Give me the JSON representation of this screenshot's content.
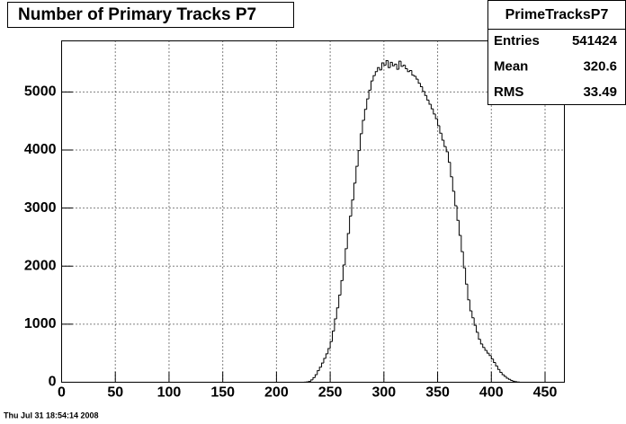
{
  "chart_data": {
    "type": "histogram",
    "title": "Number of Primary Tracks P7",
    "bins": [
      226,
      228,
      230,
      232,
      234,
      236,
      238,
      240,
      242,
      244,
      246,
      248,
      250,
      252,
      254,
      256,
      258,
      260,
      262,
      264,
      266,
      268,
      270,
      272,
      274,
      276,
      278,
      280,
      282,
      284,
      286,
      288,
      290,
      292,
      294,
      296,
      298,
      300,
      302,
      304,
      306,
      308,
      310,
      312,
      314,
      316,
      318,
      320,
      322,
      324,
      326,
      328,
      330,
      332,
      334,
      336,
      338,
      340,
      342,
      344,
      346,
      348,
      350,
      352,
      354,
      356,
      358,
      360,
      362,
      364,
      366,
      368,
      370,
      372,
      374,
      376,
      378,
      380,
      382,
      384,
      386,
      388,
      390,
      392,
      394,
      396,
      398,
      400,
      402,
      404,
      406,
      408,
      410,
      412,
      414,
      416,
      418,
      420,
      422,
      424,
      426
    ],
    "values": [
      2,
      6,
      15,
      40,
      80,
      130,
      200,
      260,
      330,
      410,
      490,
      580,
      700,
      880,
      1090,
      1280,
      1500,
      1750,
      2020,
      2300,
      2560,
      2860,
      3140,
      3430,
      3720,
      3990,
      4280,
      4510,
      4700,
      4880,
      5030,
      5190,
      5280,
      5350,
      5420,
      5380,
      5500,
      5460,
      5540,
      5420,
      5510,
      5450,
      5480,
      5390,
      5530,
      5440,
      5460,
      5400,
      5350,
      5370,
      5290,
      5270,
      5220,
      5150,
      5090,
      5010,
      4940,
      4860,
      4790,
      4710,
      4620,
      4540,
      4420,
      4290,
      4170,
      4060,
      3970,
      3790,
      3540,
      3290,
      3040,
      2790,
      2530,
      2250,
      1970,
      1690,
      1420,
      1230,
      1110,
      980,
      860,
      740,
      660,
      600,
      550,
      500,
      460,
      400,
      340,
      280,
      220,
      170,
      130,
      100,
      70,
      50,
      30,
      18,
      10,
      4
    ],
    "color": "#000000",
    "xlim": [
      0,
      468
    ],
    "xticks": [
      0,
      50,
      100,
      150,
      200,
      250,
      300,
      350,
      400,
      450
    ],
    "ylim": [
      0,
      5880
    ],
    "yticks": [
      0,
      1000,
      2000,
      3000,
      4000,
      5000
    ],
    "grid": true,
    "stats": {
      "title": "PrimeTracksP7",
      "rows": [
        [
          "Entries",
          "541424"
        ],
        [
          "Mean",
          "320.6"
        ],
        [
          "RMS",
          "33.49"
        ]
      ]
    },
    "footer": "Thu Jul 31 18:54:14 2008"
  }
}
